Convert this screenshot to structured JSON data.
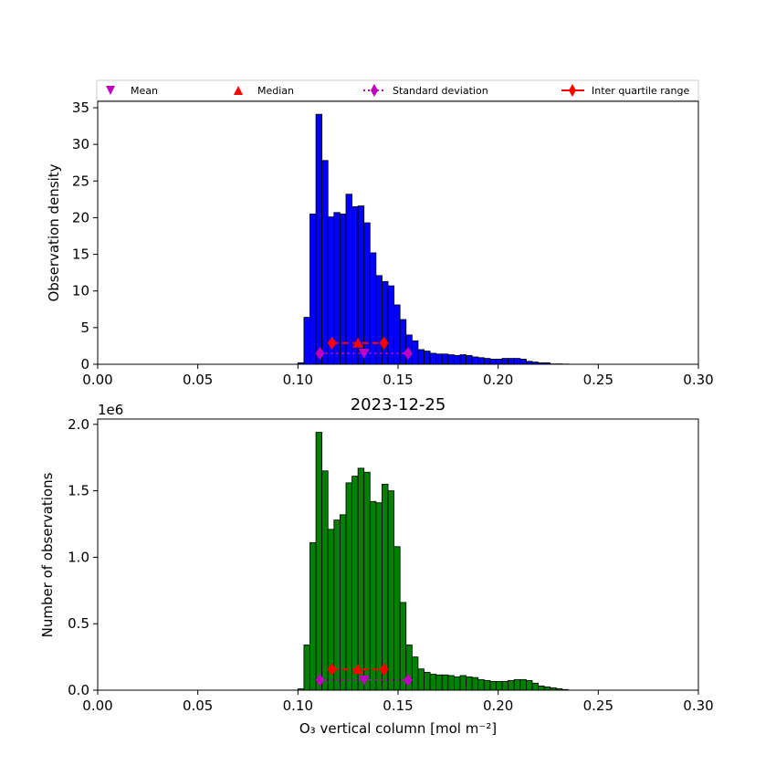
{
  "chart_data": [
    {
      "type": "bar",
      "title": "",
      "xlabel": "",
      "ylabel": "Observation density",
      "xlim": [
        0,
        0.3
      ],
      "ylim": [
        0,
        35.87
      ],
      "xticks": [
        "0.00",
        "0.05",
        "0.10",
        "0.15",
        "0.20",
        "0.25",
        "0.30"
      ],
      "yticks": [
        "0",
        "5",
        "10",
        "15",
        "20",
        "25",
        "30",
        "35"
      ],
      "bin_start": 0.1,
      "bin_width": 0.003,
      "values": [
        0.2,
        6.4,
        20.5,
        34.1,
        27.8,
        20.1,
        20.7,
        20.5,
        23.2,
        21.5,
        21.6,
        19.3,
        15.2,
        12.1,
        11.3,
        10.7,
        8.1,
        6.1,
        4.0,
        3.2,
        2.0,
        1.8,
        1.5,
        1.4,
        1.4,
        1.3,
        1.2,
        1.3,
        1.2,
        1.0,
        0.9,
        0.8,
        0.7,
        0.7,
        0.8,
        0.8,
        0.8,
        0.7,
        0.4,
        0.3,
        0.2,
        0.2,
        0.05,
        0.05,
        0.03
      ],
      "color": "#0000ff",
      "markers": {
        "mean": [
          0.133,
          1.5
        ],
        "median": [
          0.13,
          2.9
        ],
        "std": [
          [
            0.111,
            1.5
          ],
          [
            0.155,
            1.5
          ]
        ],
        "iqr": [
          [
            0.117,
            2.9
          ],
          [
            0.143,
            2.9
          ]
        ]
      },
      "legend": {
        "position": "top",
        "entries": [
          "Mean",
          "Median",
          "Standard deviation",
          "Inter quartile range"
        ]
      }
    },
    {
      "type": "bar",
      "title": "2023-12-25",
      "xlabel": "O₃ vertical column [mol m⁻²]",
      "ylabel": "Number of observations",
      "offset_label": "1e6",
      "xlim": [
        0,
        0.3
      ],
      "ylim": [
        0,
        2.04
      ],
      "xticks": [
        "0.00",
        "0.05",
        "0.10",
        "0.15",
        "0.20",
        "0.25",
        "0.30"
      ],
      "yticks": [
        "0.0",
        "0.5",
        "1.0",
        "1.5",
        "2.0"
      ],
      "bin_start": 0.1,
      "bin_width": 0.003,
      "values": [
        0.01,
        0.34,
        1.11,
        1.94,
        1.65,
        1.21,
        1.28,
        1.32,
        1.56,
        1.61,
        1.67,
        1.64,
        1.42,
        1.41,
        1.55,
        1.5,
        1.08,
        0.66,
        0.34,
        0.25,
        0.16,
        0.135,
        0.12,
        0.115,
        0.115,
        0.11,
        0.1,
        0.11,
        0.1,
        0.095,
        0.08,
        0.073,
        0.066,
        0.066,
        0.066,
        0.073,
        0.08,
        0.08,
        0.073,
        0.053,
        0.032,
        0.025,
        0.018,
        0.011,
        0.005
      ],
      "color": "#008000",
      "markers": {
        "mean": [
          0.133,
          0.076
        ],
        "median": [
          0.13,
          0.156
        ],
        "std": [
          [
            0.111,
            0.076
          ],
          [
            0.155,
            0.076
          ]
        ],
        "iqr": [
          [
            0.117,
            0.156
          ],
          [
            0.143,
            0.156
          ]
        ]
      }
    }
  ],
  "colors": {
    "mean": "#bf00bf",
    "median": "#ff0000",
    "std": "#bf00bf",
    "iqr": "#ff0000"
  }
}
